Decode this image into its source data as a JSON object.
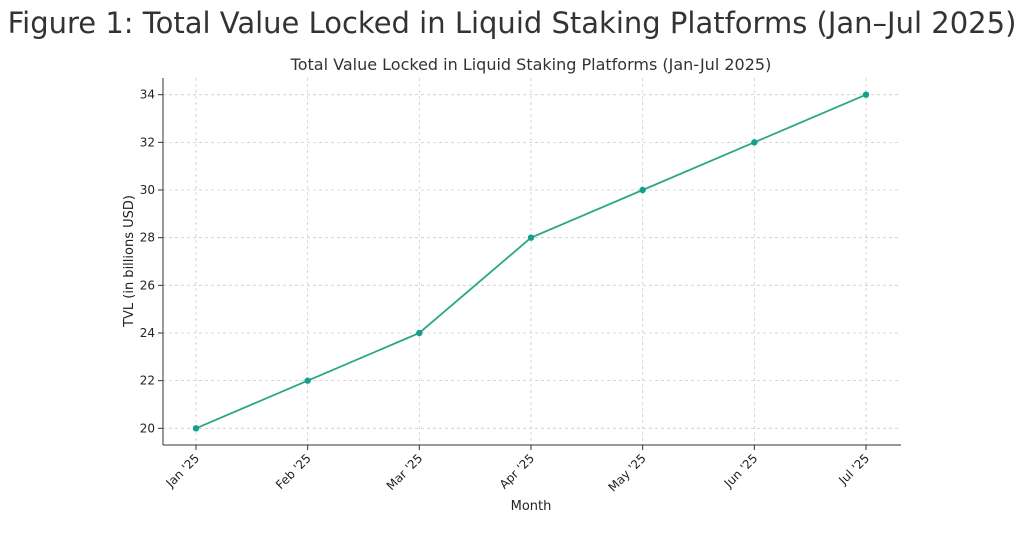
{
  "figure": {
    "title": "Figure 1: Total Value Locked in Liquid Staking Platforms (Jan–Jul 2025)"
  },
  "chart_data": {
    "type": "line",
    "title": "Total Value Locked in Liquid Staking Platforms (Jan-Jul 2025)",
    "xlabel": "Month",
    "ylabel": "TVL (in billions USD)",
    "categories": [
      "Jan '25",
      "Feb '25",
      "Mar '25",
      "Apr '25",
      "May '25",
      "Jun '25",
      "Jul '25"
    ],
    "series": [
      {
        "values": [
          20,
          22,
          24,
          28,
          30,
          32,
          34
        ]
      }
    ],
    "ylim": [
      19.3,
      34.7
    ],
    "yticks": [
      20,
      22,
      24,
      26,
      28,
      30,
      32,
      34
    ],
    "grid": true,
    "line_color": "#2aa886",
    "marker_color": "#16a085"
  }
}
